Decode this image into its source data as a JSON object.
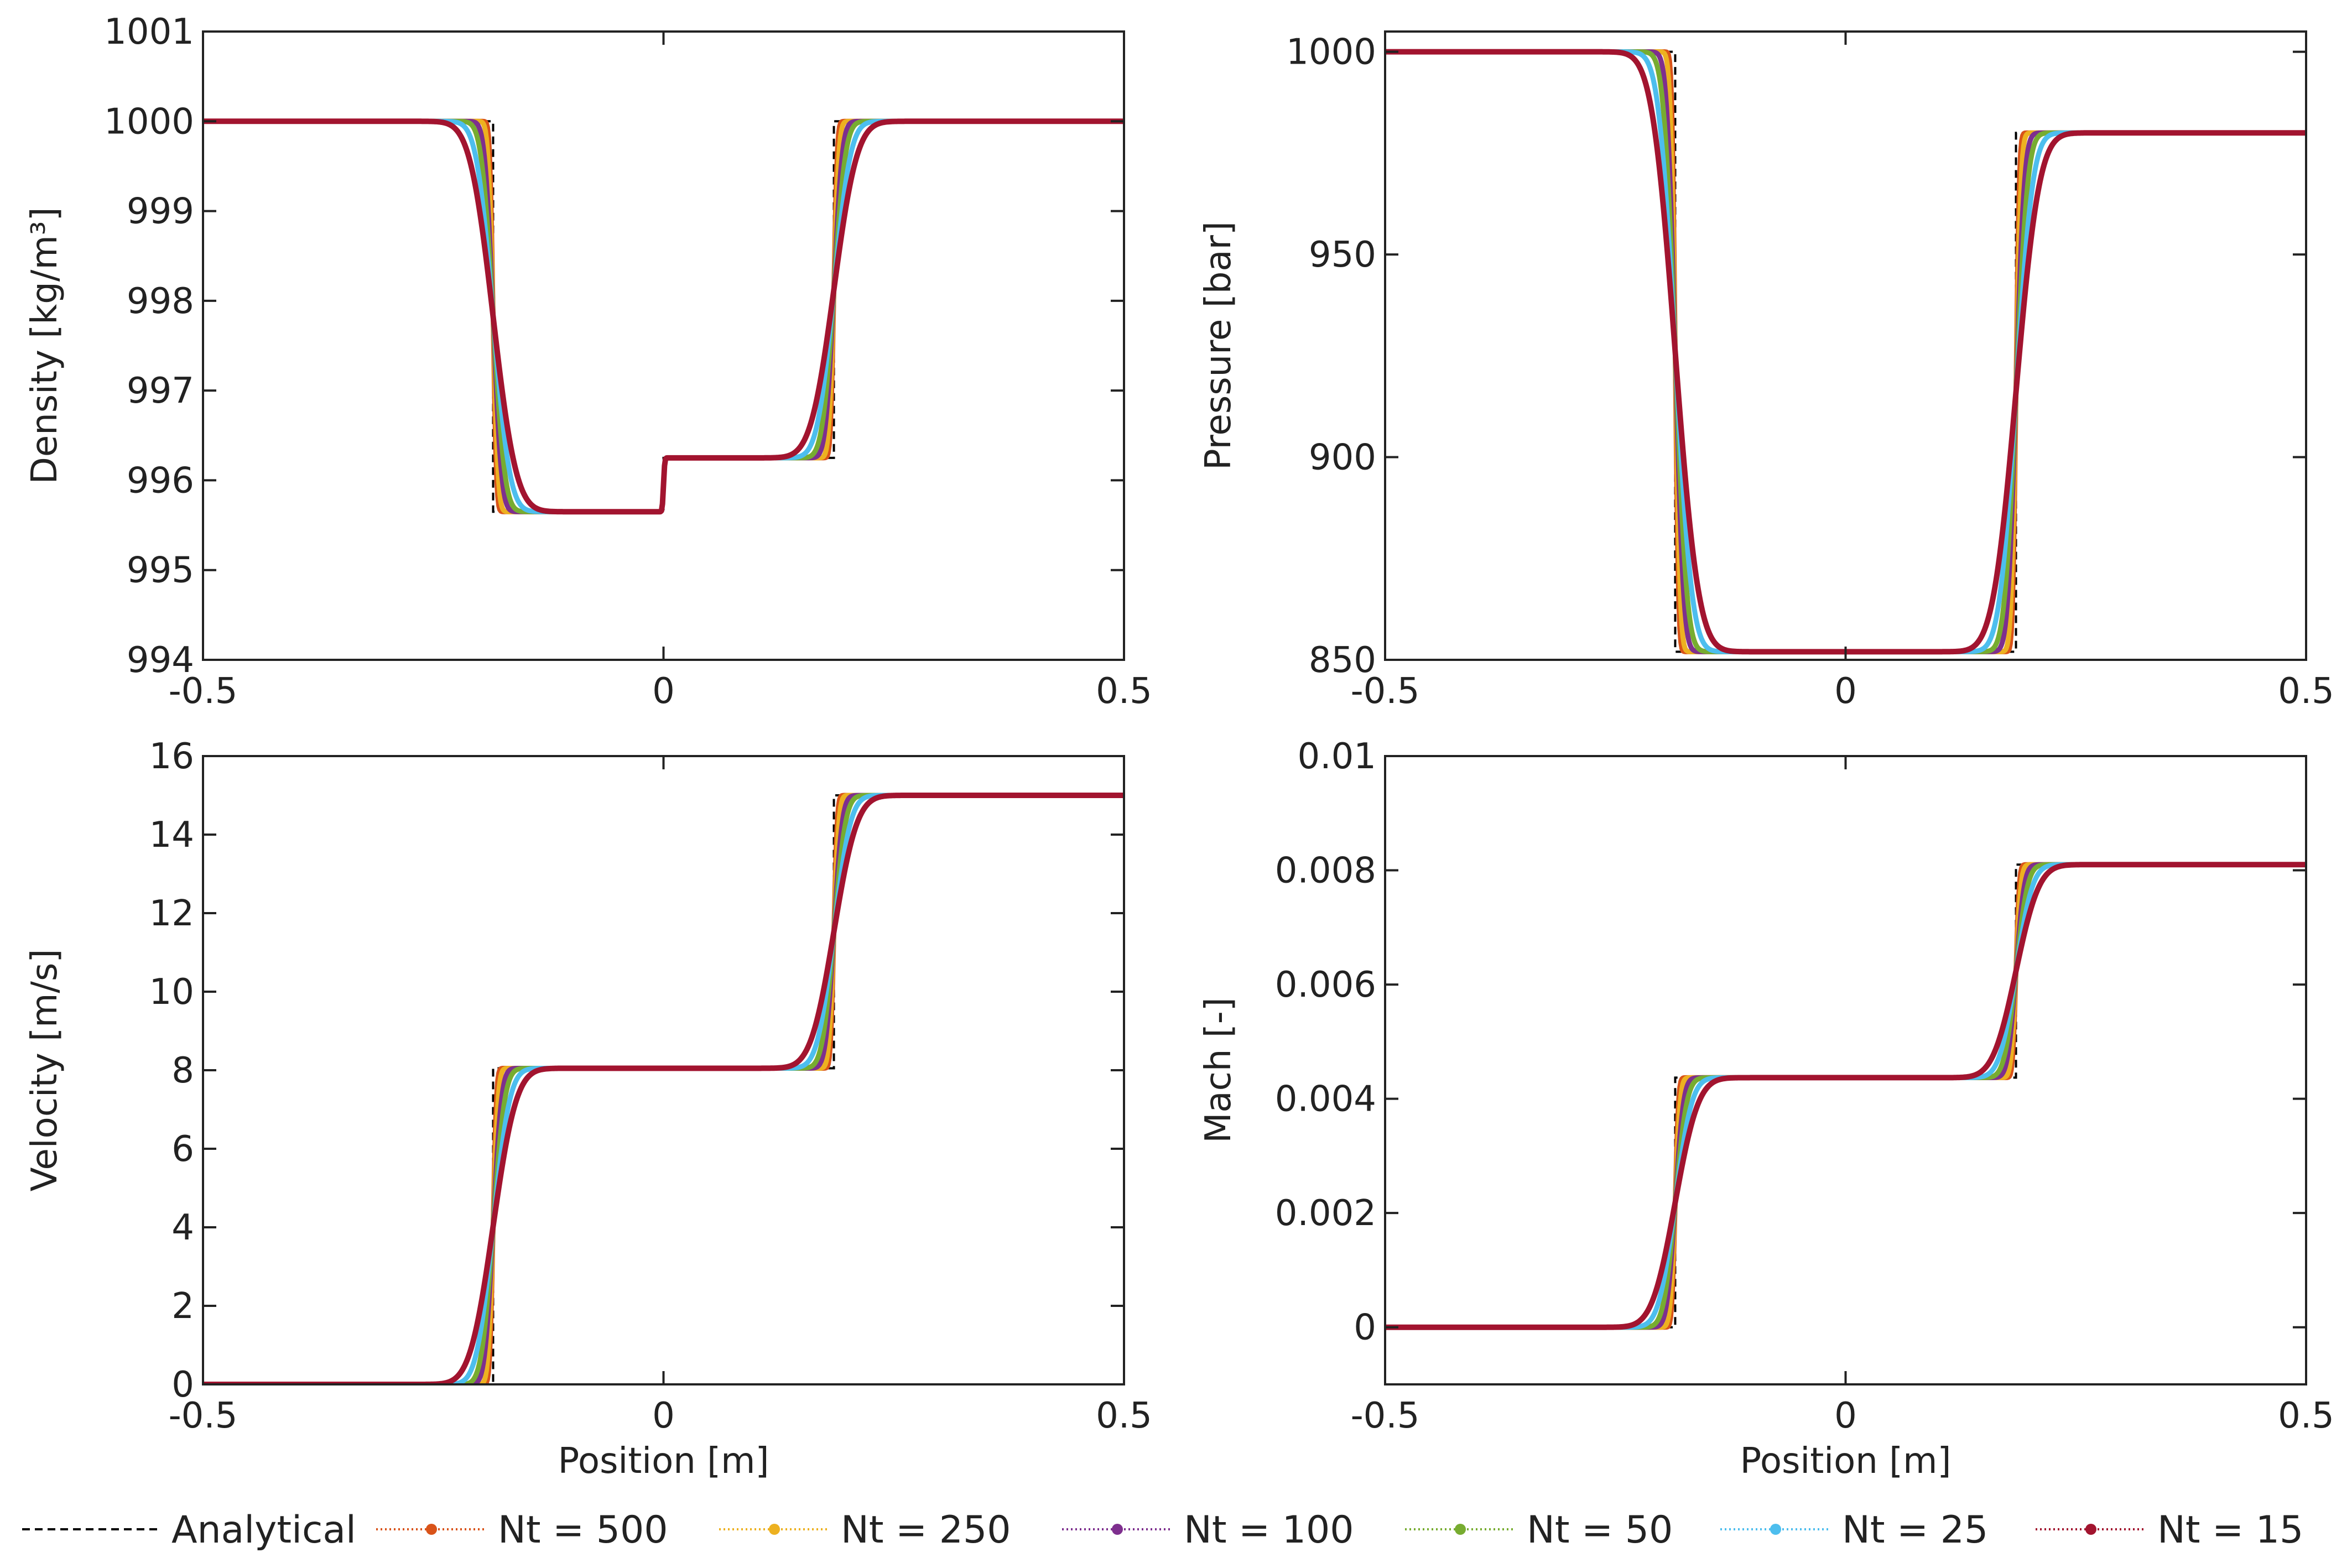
{
  "chart_data": [
    {
      "type": "line",
      "id": "density",
      "ylabel": "Density [kg/m³]",
      "xlabel": "",
      "xlim": [
        -0.5,
        0.5
      ],
      "ylim": [
        994,
        1001
      ],
      "xticks": [
        -0.5,
        0,
        0.5
      ],
      "xtick_labels": [
        "-0.5",
        "0",
        "0.5"
      ],
      "yticks": [
        994,
        995,
        996,
        997,
        998,
        999,
        1000,
        1001
      ],
      "ytick_labels": [
        "994",
        "995",
        "996",
        "997",
        "998",
        "999",
        "1000",
        "1001"
      ],
      "profile": {
        "left_value": 1000,
        "shock1_pos": -0.185,
        "plateau1": 995.65,
        "contact_pos": 0.0,
        "plateau2": 996.25,
        "shock2_pos": 0.185,
        "right_value": 1000
      }
    },
    {
      "type": "line",
      "id": "pressure",
      "ylabel": "Pressure [bar]",
      "xlabel": "",
      "xlim": [
        -0.5,
        0.5
      ],
      "ylim": [
        850,
        1005
      ],
      "xticks": [
        -0.5,
        0,
        0.5
      ],
      "xtick_labels": [
        "-0.5",
        "0",
        "0.5"
      ],
      "yticks": [
        850,
        900,
        950,
        1000
      ],
      "ytick_labels": [
        "850",
        "900",
        "950",
        "1000"
      ],
      "profile": {
        "left_value": 1000,
        "shock1_pos": -0.185,
        "plateau1": 852,
        "contact_pos": 0.0,
        "plateau2": 852,
        "shock2_pos": 0.185,
        "right_value": 980
      }
    },
    {
      "type": "line",
      "id": "velocity",
      "ylabel": "Velocity [m/s]",
      "xlabel": "Position [m]",
      "xlim": [
        -0.5,
        0.5
      ],
      "ylim": [
        0,
        16
      ],
      "xticks": [
        -0.5,
        0,
        0.5
      ],
      "xtick_labels": [
        "-0.5",
        "0",
        "0.5"
      ],
      "yticks": [
        0,
        2,
        4,
        6,
        8,
        10,
        12,
        14,
        16
      ],
      "ytick_labels": [
        "0",
        "2",
        "4",
        "6",
        "8",
        "10",
        "12",
        "14",
        "16"
      ],
      "profile": {
        "left_value": 0,
        "shock1_pos": -0.185,
        "plateau1": 8.05,
        "contact_pos": 0.0,
        "plateau2": 8.05,
        "shock2_pos": 0.185,
        "right_value": 15
      }
    },
    {
      "type": "line",
      "id": "mach",
      "ylabel": "Mach [-]",
      "xlabel": "Position [m]",
      "xlim": [
        -0.5,
        0.5
      ],
      "ylim": [
        -0.001,
        0.01
      ],
      "xticks": [
        -0.5,
        0,
        0.5
      ],
      "xtick_labels": [
        "-0.5",
        "0",
        "0.5"
      ],
      "yticks": [
        0,
        0.002,
        0.004,
        0.006,
        0.008,
        0.01
      ],
      "ytick_labels": [
        "0",
        "0.002",
        "0.004",
        "0.006",
        "0.008",
        "0.01"
      ],
      "profile": {
        "left_value": 0,
        "shock1_pos": -0.185,
        "plateau1": 0.00437,
        "contact_pos": 0.0,
        "plateau2": 0.00437,
        "shock2_pos": 0.185,
        "right_value": 0.0081
      }
    }
  ],
  "series": [
    {
      "name": "Analytical",
      "label": "Analytical",
      "color": "#000000",
      "style": "dashed",
      "smoothing": 0
    },
    {
      "name": "Nt = 500",
      "label": "Nt = 500",
      "color": "#D95319",
      "style": "dotted-marker",
      "smoothing": 0.004
    },
    {
      "name": "Nt = 250",
      "label": "Nt = 250",
      "color": "#EDB120",
      "style": "dotted-marker",
      "smoothing": 0.006
    },
    {
      "name": "Nt = 100",
      "label": "Nt = 100",
      "color": "#7E2F8E",
      "style": "dotted-marker",
      "smoothing": 0.01
    },
    {
      "name": "Nt = 50",
      "label": "Nt = 50",
      "color": "#77AC30",
      "style": "dotted-marker",
      "smoothing": 0.014
    },
    {
      "name": "Nt = 25",
      "label": "Nt = 25",
      "color": "#4DBEEE",
      "style": "dotted-marker",
      "smoothing": 0.02
    },
    {
      "name": "Nt = 15",
      "label": "Nt = 15",
      "color": "#A2142F",
      "style": "dotted-marker",
      "smoothing": 0.028
    }
  ]
}
